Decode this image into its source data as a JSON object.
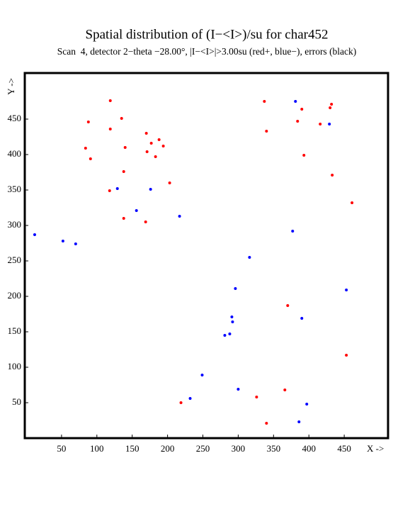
{
  "chart_data": {
    "type": "scatter",
    "title": "Spatial distribution of (I−<I>)/su for char452",
    "subtitle": "Scan  4, detector 2−theta −28.00°, |I−<I>|>3.00su (red+, blue−), errors (black)",
    "x_label": "X ->",
    "y_label": "Y ->",
    "xlim": [
      -2,
      512
    ],
    "ylim": [
      0,
      515
    ],
    "xticks": [
      50,
      100,
      150,
      200,
      250,
      300,
      350,
      400,
      450
    ],
    "yticks": [
      50,
      100,
      150,
      200,
      250,
      300,
      350,
      400,
      450
    ],
    "series": [
      {
        "color": "#ff0000",
        "x": [
          119,
          135,
          88,
          119,
          170,
          188,
          177,
          84,
          140,
          194,
          171,
          183,
          91,
          138,
          203,
          118,
          138,
          169,
          337,
          432,
          430,
          390,
          384,
          416,
          340,
          393,
          433,
          461,
          370,
          453,
          366,
          326,
          219,
          340
        ],
        "values": [
          476,
          451,
          446,
          436,
          430,
          421,
          416,
          409,
          410,
          412,
          404,
          397,
          394,
          376,
          360,
          349,
          310,
          305,
          475,
          471,
          466,
          464,
          447,
          443,
          433,
          399,
          371,
          332,
          187,
          117,
          68,
          58,
          50,
          21
        ]
      },
      {
        "color": "#0000ff",
        "x": [
          381,
          429,
          129,
          176,
          156,
          217,
          12,
          52,
          70,
          377,
          316,
          296,
          453,
          291,
          292,
          390,
          288,
          281,
          249,
          300,
          232,
          397,
          386
        ],
        "values": [
          475,
          443,
          352,
          351,
          321,
          313,
          287,
          278,
          274,
          292,
          255,
          211,
          209,
          171,
          164,
          169,
          147,
          145,
          89,
          69,
          56,
          48,
          23
        ]
      }
    ]
  }
}
